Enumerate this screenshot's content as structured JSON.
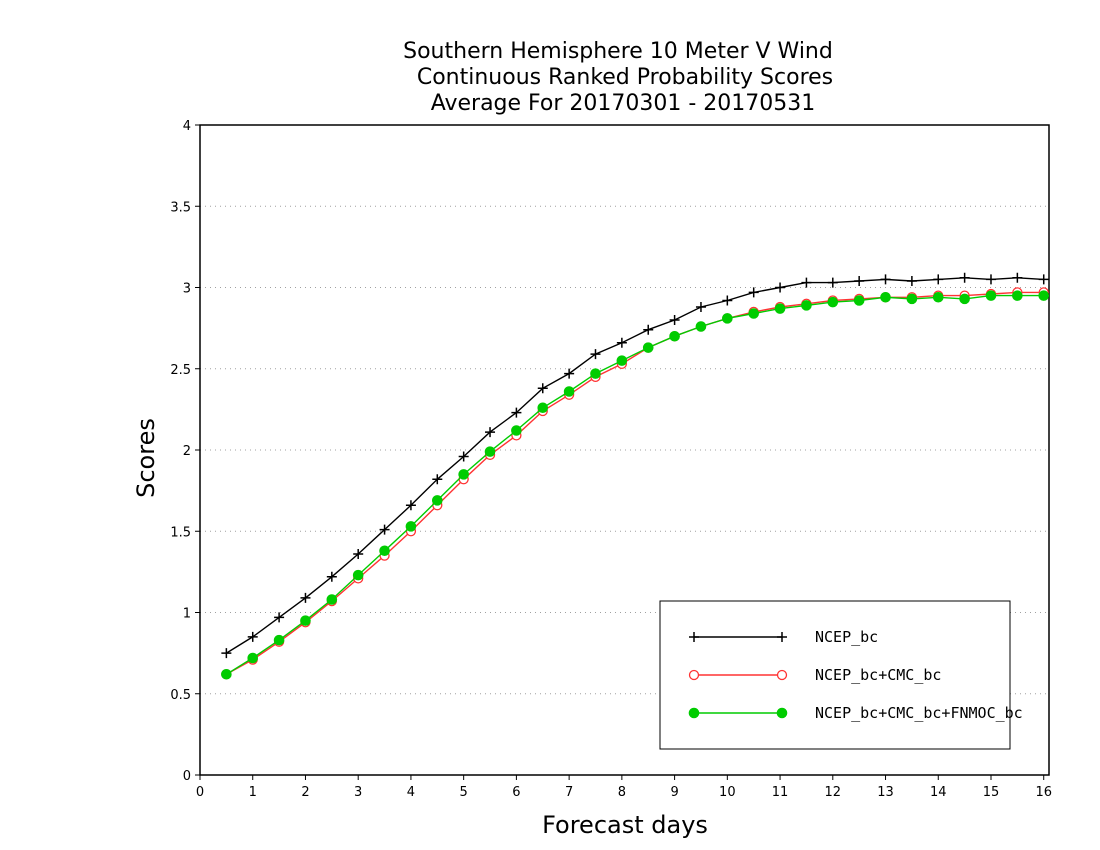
{
  "chart_data": {
    "type": "line",
    "title_lines": [
      "Southern Hemisphere 10 Meter V Wind",
      "Continuous Ranked Probability Scores",
      "Average For 20170301 - 20170531"
    ],
    "xlabel": "Forecast days",
    "ylabel": "Scores",
    "xlim": [
      0,
      16.1
    ],
    "ylim": [
      0,
      4
    ],
    "x_ticks": [
      "0",
      "1",
      "2",
      "3",
      "4",
      "5",
      "6",
      "7",
      "8",
      "9",
      "10",
      "11",
      "12",
      "13",
      "14",
      "15",
      "16"
    ],
    "y_ticks": [
      "0",
      "0.5",
      "1",
      "1.5",
      "2",
      "2.5",
      "3",
      "3.5",
      "4"
    ],
    "grid": true,
    "legend_position": "bottom-right",
    "x": [
      0.5,
      1,
      1.5,
      2,
      2.5,
      3,
      3.5,
      4,
      4.5,
      5,
      5.5,
      6,
      6.5,
      7,
      7.5,
      8,
      8.5,
      9,
      9.5,
      10,
      10.5,
      11,
      11.5,
      12,
      12.5,
      13,
      13.5,
      14,
      14.5,
      15,
      15.5,
      16
    ],
    "series": [
      {
        "name": "NCEP_bc",
        "color": "#000000",
        "marker": "plus",
        "values": [
          0.75,
          0.85,
          0.97,
          1.09,
          1.22,
          1.36,
          1.51,
          1.66,
          1.82,
          1.96,
          2.11,
          2.23,
          2.38,
          2.47,
          2.59,
          2.66,
          2.74,
          2.8,
          2.88,
          2.92,
          2.97,
          3.0,
          3.03,
          3.03,
          3.04,
          3.05,
          3.04,
          3.05,
          3.06,
          3.05,
          3.06,
          3.05
        ]
      },
      {
        "name": "NCEP_bc+CMC_bc",
        "color": "#ff3333",
        "marker": "open-circle",
        "values": [
          0.62,
          0.71,
          0.82,
          0.94,
          1.07,
          1.21,
          1.35,
          1.5,
          1.66,
          1.82,
          1.97,
          2.09,
          2.24,
          2.34,
          2.45,
          2.53,
          2.63,
          2.7,
          2.76,
          2.81,
          2.85,
          2.88,
          2.9,
          2.92,
          2.93,
          2.94,
          2.94,
          2.95,
          2.95,
          2.96,
          2.97,
          2.97
        ]
      },
      {
        "name": "NCEP_bc+CMC_bc+FNMOC_bc",
        "color": "#00cc00",
        "marker": "filled-circle",
        "values": [
          0.62,
          0.72,
          0.83,
          0.95,
          1.08,
          1.23,
          1.38,
          1.53,
          1.69,
          1.85,
          1.99,
          2.12,
          2.26,
          2.36,
          2.47,
          2.55,
          2.63,
          2.7,
          2.76,
          2.81,
          2.84,
          2.87,
          2.89,
          2.91,
          2.92,
          2.94,
          2.93,
          2.94,
          2.93,
          2.95,
          2.95,
          2.95
        ]
      }
    ]
  }
}
